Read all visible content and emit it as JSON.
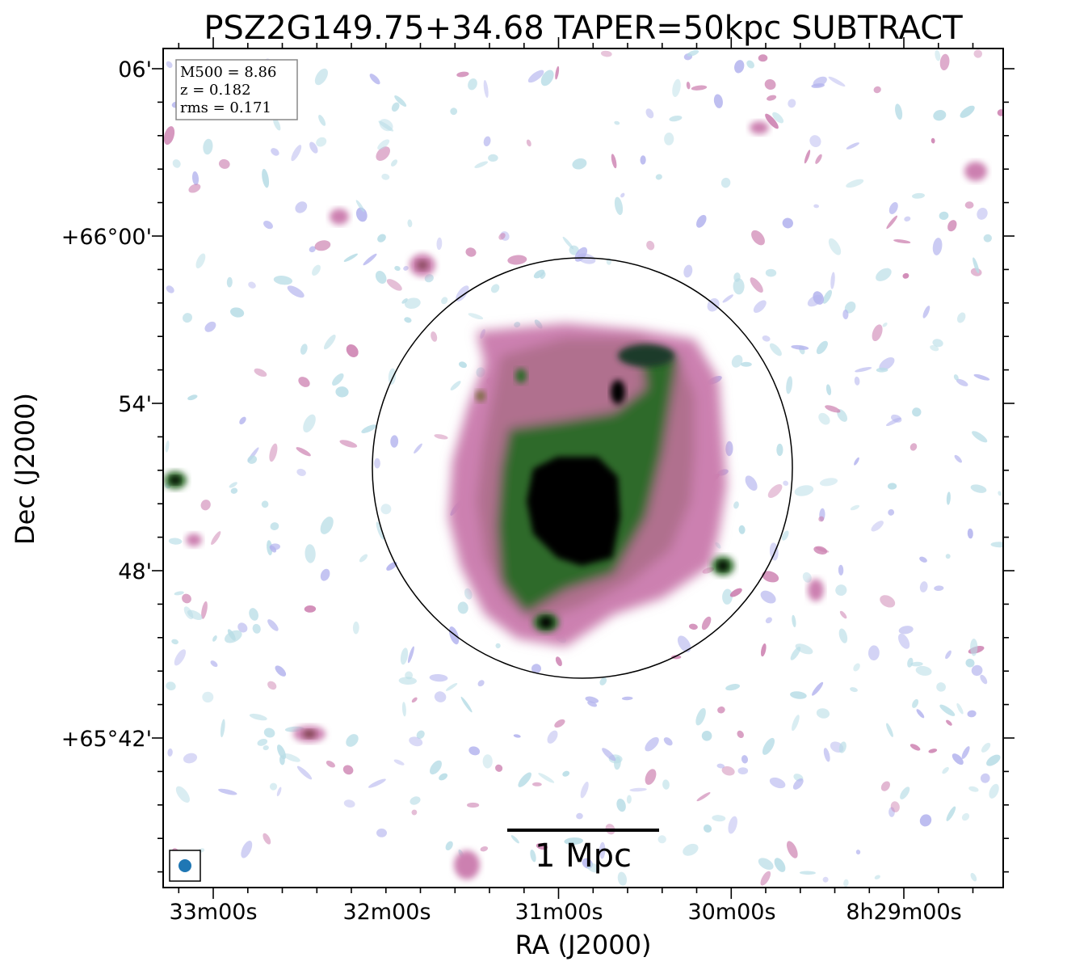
{
  "title": "PSZ2G149.75+34.68 TAPER=50kpc SUBTRACT",
  "axes": {
    "xlabel": "RA (J2000)",
    "ylabel": "Dec (J2000)",
    "xticks": [
      "33m00s",
      "32m00s",
      "31m00s",
      "30m00s",
      "8h29m00s"
    ],
    "yticks": [
      "06'",
      "+66°00'",
      "54'",
      "48'",
      "+65°42'"
    ]
  },
  "info_box": {
    "mass": "M500 = 8.86",
    "redshift": "z = 0.182",
    "rms": "rms = 0.171"
  },
  "scale_bar": {
    "label": "1 Mpc"
  },
  "colors": {
    "faint": "#b8dde6",
    "low": "#b4b4ee",
    "mid": "#cc80b0",
    "high": "#2f6b2a",
    "peak": "#000000",
    "beam": "#1f77b4"
  }
}
